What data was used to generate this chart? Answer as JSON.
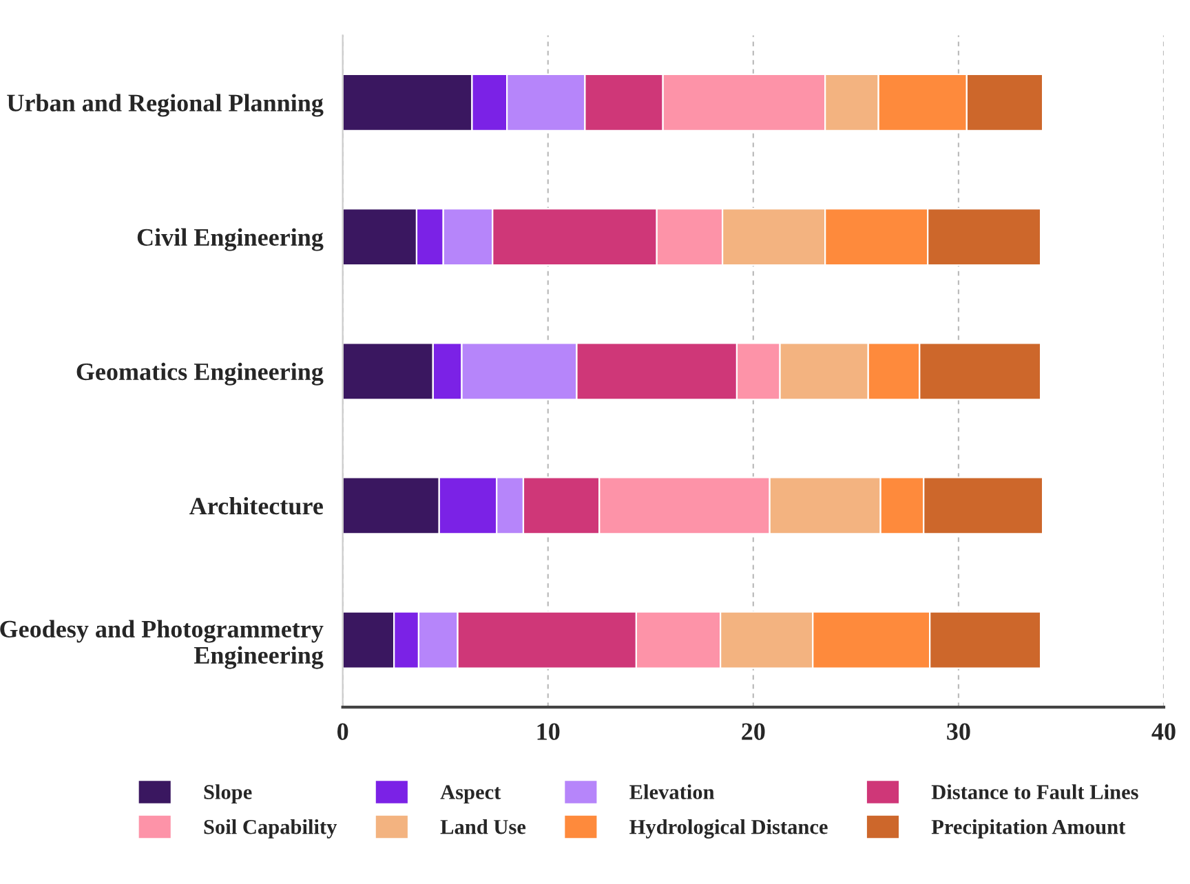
{
  "chart_data": {
    "type": "bar",
    "orientation": "horizontal",
    "stacked": true,
    "categories": [
      "Urban and Regional Planning",
      "Civil Engineering",
      "Geomatics Engineering",
      "Architecture",
      "Geodesy and Photogrammetry\nEngineering"
    ],
    "series": [
      {
        "name": "Slope",
        "color": "#3a1760",
        "values": [
          6.3,
          3.6,
          4.4,
          4.7,
          2.5
        ]
      },
      {
        "name": "Aspect",
        "color": "#7b22e6",
        "values": [
          1.7,
          1.3,
          1.4,
          2.8,
          1.2
        ]
      },
      {
        "name": "Elevation",
        "color": "#b685fa",
        "values": [
          3.8,
          2.4,
          5.6,
          1.3,
          1.9
        ]
      },
      {
        "name": "Distance to Fault Lines",
        "color": "#cf3778",
        "values": [
          3.8,
          8.0,
          7.8,
          3.7,
          8.7
        ]
      },
      {
        "name": "Soil Capability",
        "color": "#fd93a8",
        "values": [
          7.9,
          3.2,
          2.1,
          8.3,
          4.1
        ]
      },
      {
        "name": "Land Use",
        "color": "#f3b380",
        "values": [
          2.6,
          5.0,
          4.3,
          5.4,
          4.5
        ]
      },
      {
        "name": "Hydrological Distance",
        "color": "#fe8a3c",
        "values": [
          4.3,
          5.0,
          2.5,
          2.1,
          5.7
        ]
      },
      {
        "name": "Precipitation Amount",
        "color": "#cd672b",
        "values": [
          3.7,
          5.5,
          5.9,
          5.8,
          5.4
        ]
      }
    ],
    "xlim": [
      0,
      40
    ],
    "xticks": [
      0,
      10,
      20,
      30,
      40
    ],
    "grid": "x",
    "legend": "bottom"
  }
}
